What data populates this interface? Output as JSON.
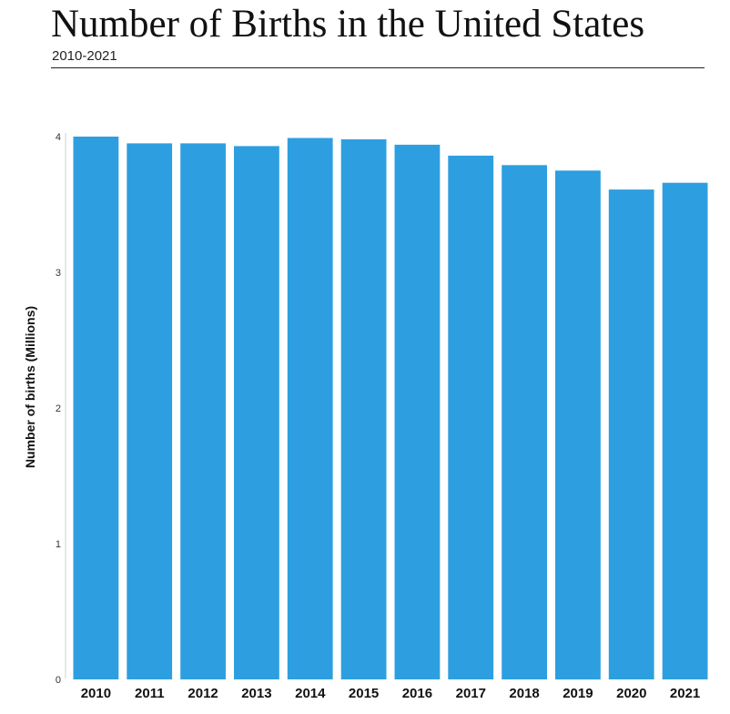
{
  "header": {
    "title": "Number of Births in the United States",
    "subtitle": "2010-2021"
  },
  "chart_data": {
    "type": "bar",
    "title": "Number of Births in the United States",
    "subtitle": "2010-2021",
    "xlabel": "",
    "ylabel": "Number of births (Millions)",
    "categories": [
      "2010",
      "2011",
      "2012",
      "2013",
      "2014",
      "2015",
      "2016",
      "2017",
      "2018",
      "2019",
      "2020",
      "2021"
    ],
    "values": [
      4.0,
      3.95,
      3.95,
      3.93,
      3.99,
      3.98,
      3.94,
      3.86,
      3.79,
      3.75,
      3.61,
      3.66
    ],
    "ylim": [
      0,
      4
    ],
    "yticks": [
      "0",
      "1",
      "2",
      "3",
      "4"
    ],
    "grid": false,
    "legend": "none",
    "bar_color": "#2d9fe0"
  }
}
